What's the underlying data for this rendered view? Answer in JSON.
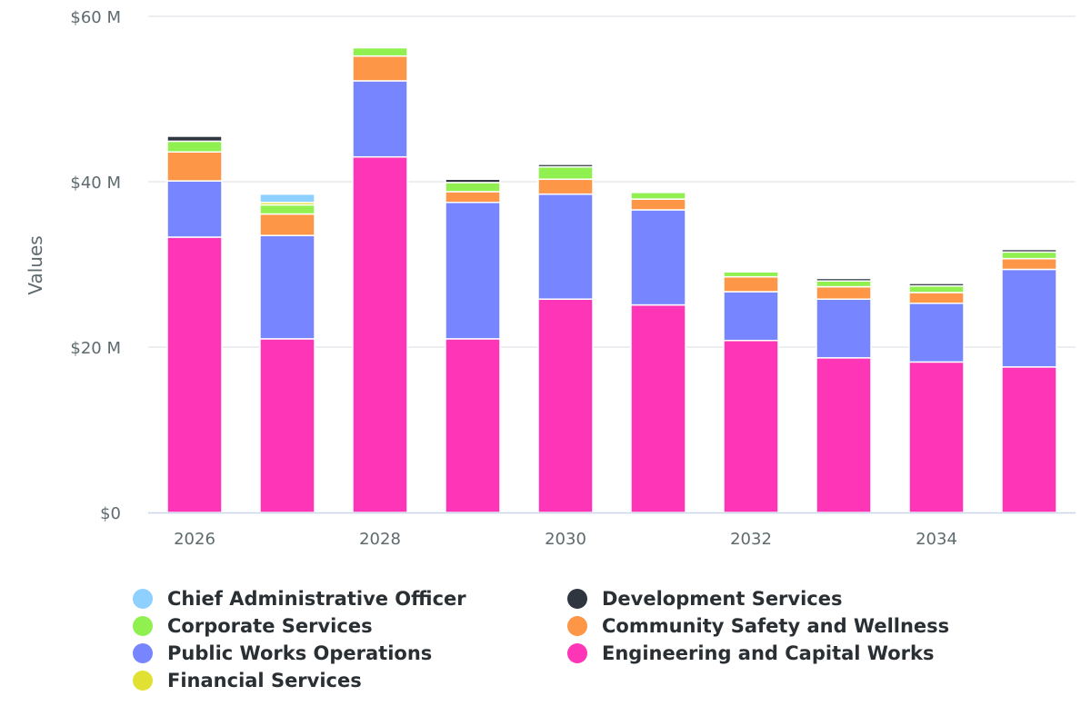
{
  "chart_data": {
    "type": "bar",
    "stacked": true,
    "title": "",
    "xlabel": "",
    "ylabel": "Values",
    "ylim": [
      0,
      60
    ],
    "y_unit": "M",
    "y_ticks": [
      {
        "value": 0,
        "label": "$0"
      },
      {
        "value": 20,
        "label": "$20 M"
      },
      {
        "value": 40,
        "label": "$40 M"
      },
      {
        "value": 60,
        "label": "$60 M"
      }
    ],
    "categories": [
      "2026",
      "2027",
      "2028",
      "2029",
      "2030",
      "2031",
      "2032",
      "2033",
      "2034",
      "2035"
    ],
    "x_tick_labels": [
      "2026",
      "",
      "2028",
      "",
      "2030",
      "",
      "2032",
      "",
      "2034",
      ""
    ],
    "grid": true,
    "legend_position": "bottom",
    "series": [
      {
        "name": "Engineering and Capital Works",
        "color": "#fd35b6",
        "values": [
          33.3,
          21.0,
          43.0,
          21.0,
          25.8,
          25.1,
          20.8,
          18.7,
          18.2,
          17.6
        ]
      },
      {
        "name": "Public Works Operations",
        "color": "#7785ff",
        "values": [
          6.8,
          12.5,
          9.2,
          16.5,
          12.7,
          11.5,
          5.9,
          7.1,
          7.1,
          11.8
        ]
      },
      {
        "name": "Community Safety and Wellness",
        "color": "#fd9647",
        "values": [
          3.5,
          2.6,
          3.0,
          1.3,
          1.8,
          1.3,
          1.8,
          1.5,
          1.3,
          1.3
        ]
      },
      {
        "name": "Corporate Services",
        "color": "#90f050",
        "values": [
          1.3,
          1.1,
          1.0,
          1.1,
          1.5,
          0.8,
          0.6,
          0.7,
          0.8,
          0.8
        ]
      },
      {
        "name": "Financial Services",
        "color": "#e1e134",
        "values": [
          0,
          0.3,
          0,
          0,
          0,
          0,
          0,
          0,
          0,
          0
        ]
      },
      {
        "name": "Chief Administrative Officer",
        "color": "#8ed0ff",
        "values": [
          0,
          1.0,
          0,
          0,
          0,
          0,
          0,
          0,
          0,
          0
        ]
      },
      {
        "name": "Development Services",
        "color": "#2f3640",
        "values": [
          0.6,
          0,
          0,
          0.4,
          0.3,
          0,
          0,
          0.3,
          0.3,
          0.3
        ]
      }
    ]
  },
  "legend": {
    "items": [
      {
        "name": "Chief Administrative Officer",
        "color": "#8ed0ff"
      },
      {
        "name": "Development Services",
        "color": "#2f3640"
      },
      {
        "name": "Corporate Services",
        "color": "#90f050"
      },
      {
        "name": "Community Safety and Wellness",
        "color": "#fd9647"
      },
      {
        "name": "Public Works Operations",
        "color": "#7785ff"
      },
      {
        "name": "Engineering and Capital Works",
        "color": "#fd35b6"
      },
      {
        "name": "Financial Services",
        "color": "#e1e134"
      }
    ]
  }
}
